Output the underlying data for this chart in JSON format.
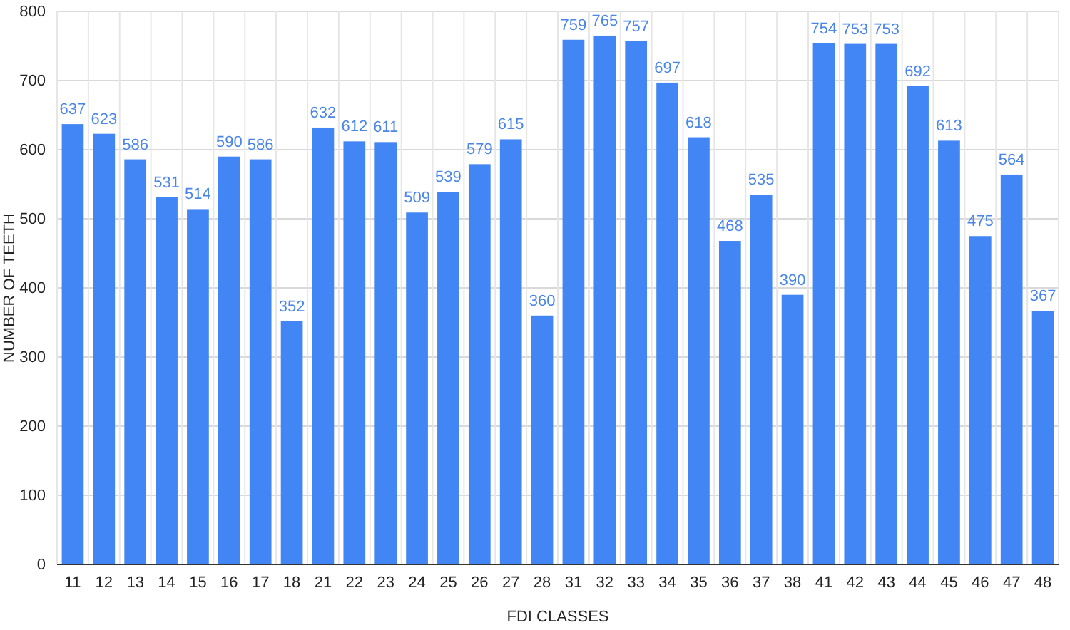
{
  "chart_data": {
    "type": "bar",
    "xlabel": "FDI CLASSES",
    "ylabel": "NUMBER OF TEETH",
    "categories": [
      "11",
      "12",
      "13",
      "14",
      "15",
      "16",
      "17",
      "18",
      "21",
      "22",
      "23",
      "24",
      "25",
      "26",
      "27",
      "28",
      "31",
      "32",
      "33",
      "34",
      "35",
      "36",
      "37",
      "38",
      "41",
      "42",
      "43",
      "44",
      "45",
      "46",
      "47",
      "48"
    ],
    "values": [
      637,
      623,
      586,
      531,
      514,
      590,
      586,
      352,
      632,
      612,
      611,
      509,
      539,
      579,
      615,
      360,
      759,
      765,
      757,
      697,
      618,
      468,
      535,
      390,
      754,
      753,
      753,
      692,
      613,
      475,
      564,
      367
    ],
    "color": "#4285f4",
    "ylim": [
      0,
      800
    ],
    "yticks": [
      0,
      100,
      200,
      300,
      400,
      500,
      600,
      700,
      800
    ],
    "grid": true,
    "data_labels": true
  }
}
